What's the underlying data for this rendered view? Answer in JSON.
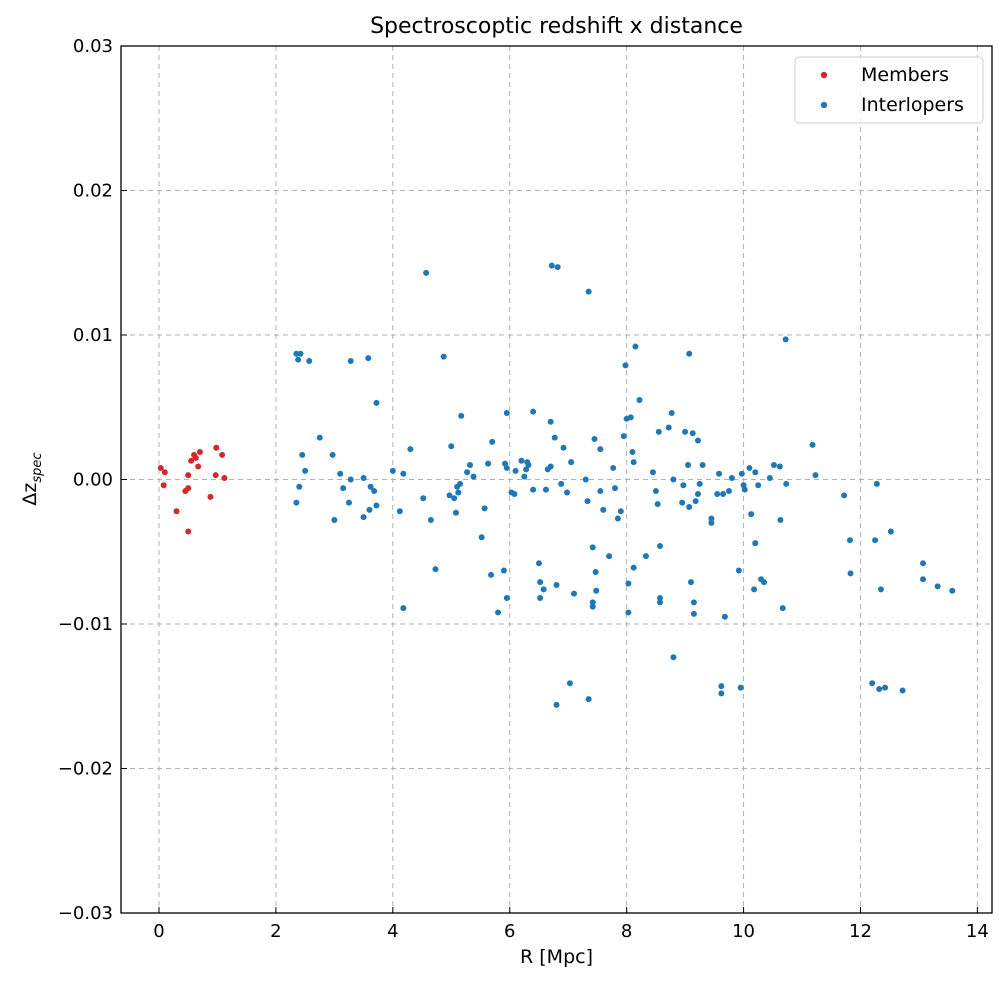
{
  "chart_data": {
    "type": "scatter",
    "title": "Spectroscoptic redshift x distance",
    "xlabel": "R [Mpc]",
    "ylabel_main": "Δz",
    "ylabel_sub": "spec",
    "xlim": [
      -0.65,
      14.25
    ],
    "ylim": [
      -0.03,
      0.03
    ],
    "xticks": [
      0,
      2,
      4,
      6,
      8,
      10,
      12,
      14
    ],
    "yticks": [
      -0.03,
      -0.02,
      -0.01,
      0.0,
      0.01,
      0.02,
      0.03
    ],
    "ytick_labels": [
      "−0.03",
      "−0.02",
      "−0.01",
      "0.00",
      "0.01",
      "0.02",
      "0.03"
    ],
    "grid": true,
    "legend_position": "top-right",
    "series": [
      {
        "name": "Members",
        "color": "#d62728",
        "points": [
          [
            0.03,
            0.0008
          ],
          [
            0.08,
            -0.0004
          ],
          [
            0.1,
            0.0005
          ],
          [
            0.3,
            -0.0022
          ],
          [
            0.45,
            -0.0008
          ],
          [
            0.5,
            -0.0006
          ],
          [
            0.5,
            0.0003
          ],
          [
            0.55,
            0.0013
          ],
          [
            0.6,
            0.0017
          ],
          [
            0.63,
            0.0015
          ],
          [
            0.67,
            0.0009
          ],
          [
            0.7,
            0.0019
          ],
          [
            0.88,
            -0.0012
          ],
          [
            0.97,
            0.0003
          ],
          [
            0.98,
            0.0022
          ],
          [
            1.08,
            0.0017
          ],
          [
            1.12,
            0.0001
          ],
          [
            0.5,
            -0.0036
          ]
        ]
      },
      {
        "name": "Interlopers",
        "color": "#1f77b4",
        "points": [
          [
            2.35,
            0.0087
          ],
          [
            2.38,
            0.0083
          ],
          [
            2.42,
            0.0087
          ],
          [
            2.57,
            0.0082
          ],
          [
            2.35,
            -0.0016
          ],
          [
            2.4,
            -0.0005
          ],
          [
            2.45,
            0.0017
          ],
          [
            2.5,
            0.0006
          ],
          [
            2.75,
            0.0029
          ],
          [
            2.97,
            0.0017
          ],
          [
            3.0,
            -0.0028
          ],
          [
            3.1,
            0.0004
          ],
          [
            3.15,
            -0.0006
          ],
          [
            3.25,
            -0.0016
          ],
          [
            3.28,
            0.0
          ],
          [
            3.28,
            0.0082
          ],
          [
            3.5,
            0.0001
          ],
          [
            3.5,
            -0.0026
          ],
          [
            3.58,
            0.0084
          ],
          [
            3.6,
            -0.0021
          ],
          [
            3.62,
            -0.0005
          ],
          [
            3.68,
            -0.0008
          ],
          [
            3.72,
            -0.0018
          ],
          [
            3.72,
            0.0053
          ],
          [
            4.0,
            0.0006
          ],
          [
            4.12,
            -0.0022
          ],
          [
            4.18,
            0.0004
          ],
          [
            4.18,
            -0.0089
          ],
          [
            4.3,
            0.0021
          ],
          [
            4.52,
            -0.0013
          ],
          [
            4.57,
            0.0143
          ],
          [
            4.65,
            -0.0028
          ],
          [
            4.73,
            -0.0062
          ],
          [
            4.87,
            0.0085
          ],
          [
            4.97,
            -0.0011
          ],
          [
            5.0,
            0.0023
          ],
          [
            5.05,
            -0.0013
          ],
          [
            5.08,
            -0.0023
          ],
          [
            5.1,
            -0.0005
          ],
          [
            5.12,
            -0.0009
          ],
          [
            5.15,
            -0.0003
          ],
          [
            5.17,
            0.0044
          ],
          [
            5.27,
            0.0005
          ],
          [
            5.32,
            0.001
          ],
          [
            5.38,
            0.0002
          ],
          [
            5.52,
            -0.004
          ],
          [
            5.57,
            -0.002
          ],
          [
            5.63,
            0.0011
          ],
          [
            5.68,
            -0.0066
          ],
          [
            5.7,
            0.0026
          ],
          [
            5.8,
            -0.0092
          ],
          [
            5.9,
            -0.0063
          ],
          [
            5.92,
            0.0011
          ],
          [
            5.95,
            0.0046
          ],
          [
            5.95,
            0.0008
          ],
          [
            5.95,
            -0.0082
          ],
          [
            6.03,
            -0.0009
          ],
          [
            6.08,
            -0.001
          ],
          [
            6.1,
            0.0006
          ],
          [
            6.2,
            0.0013
          ],
          [
            6.25,
            0.0002
          ],
          [
            6.28,
            0.0007
          ],
          [
            6.3,
            0.0012
          ],
          [
            6.32,
            0.001
          ],
          [
            6.4,
            0.0047
          ],
          [
            6.4,
            -0.0007
          ],
          [
            6.5,
            -0.0058
          ],
          [
            6.52,
            -0.0071
          ],
          [
            6.52,
            -0.0082
          ],
          [
            6.58,
            -0.0076
          ],
          [
            6.62,
            -0.0007
          ],
          [
            6.65,
            0.0007
          ],
          [
            6.7,
            0.0009
          ],
          [
            6.7,
            0.004
          ],
          [
            6.72,
            0.0148
          ],
          [
            6.77,
            0.0029
          ],
          [
            6.8,
            -0.0073
          ],
          [
            6.8,
            -0.0156
          ],
          [
            6.82,
            0.0147
          ],
          [
            6.88,
            -0.0003
          ],
          [
            6.92,
            0.0022
          ],
          [
            6.98,
            -0.0009
          ],
          [
            7.03,
            -0.0141
          ],
          [
            7.05,
            0.0012
          ],
          [
            7.1,
            -0.0079
          ],
          [
            7.3,
            0.0
          ],
          [
            7.33,
            -0.0015
          ],
          [
            7.35,
            -0.0152
          ],
          [
            7.35,
            0.013
          ],
          [
            7.42,
            -0.0047
          ],
          [
            7.42,
            -0.0085
          ],
          [
            7.42,
            -0.0088
          ],
          [
            7.45,
            0.0028
          ],
          [
            7.47,
            -0.0064
          ],
          [
            7.48,
            -0.0077
          ],
          [
            7.55,
            0.0021
          ],
          [
            7.55,
            -0.0008
          ],
          [
            7.6,
            -0.0021
          ],
          [
            7.7,
            -0.0053
          ],
          [
            7.77,
            0.0008
          ],
          [
            7.8,
            -0.0006
          ],
          [
            7.85,
            -0.0027
          ],
          [
            7.9,
            -0.0022
          ],
          [
            7.95,
            0.003
          ],
          [
            7.98,
            0.0079
          ],
          [
            8.0,
            0.0042
          ],
          [
            8.03,
            -0.0092
          ],
          [
            8.03,
            -0.0072
          ],
          [
            8.07,
            0.0043
          ],
          [
            8.1,
            0.0019
          ],
          [
            8.12,
            0.0012
          ],
          [
            8.12,
            -0.0061
          ],
          [
            8.15,
            0.0092
          ],
          [
            8.22,
            0.0055
          ],
          [
            8.33,
            -0.0053
          ],
          [
            8.45,
            0.0005
          ],
          [
            8.5,
            -0.0008
          ],
          [
            8.53,
            -0.0017
          ],
          [
            8.55,
            0.0033
          ],
          [
            8.57,
            -0.0046
          ],
          [
            8.57,
            -0.0082
          ],
          [
            8.57,
            -0.0085
          ],
          [
            8.72,
            0.0036
          ],
          [
            8.77,
            0.0046
          ],
          [
            8.8,
            -0.0123
          ],
          [
            8.8,
            0.0
          ],
          [
            8.95,
            -0.0016
          ],
          [
            8.97,
            -0.0004
          ],
          [
            9.0,
            0.0033
          ],
          [
            9.05,
            0.001
          ],
          [
            9.07,
            -0.0019
          ],
          [
            9.07,
            0.0087
          ],
          [
            9.1,
            -0.0071
          ],
          [
            9.13,
            0.0032
          ],
          [
            9.15,
            -0.0085
          ],
          [
            9.15,
            -0.0093
          ],
          [
            9.18,
            -0.0015
          ],
          [
            9.22,
            0.0027
          ],
          [
            9.22,
            -0.001
          ],
          [
            9.25,
            -0.0003
          ],
          [
            9.3,
            0.001
          ],
          [
            9.45,
            -0.0027
          ],
          [
            9.45,
            -0.003
          ],
          [
            9.55,
            -0.001
          ],
          [
            9.58,
            0.0004
          ],
          [
            9.62,
            -0.0143
          ],
          [
            9.62,
            -0.0148
          ],
          [
            9.65,
            -0.001
          ],
          [
            9.68,
            -0.0095
          ],
          [
            9.75,
            -0.0008
          ],
          [
            9.8,
            0.0001
          ],
          [
            9.92,
            -0.0063
          ],
          [
            9.95,
            -0.0144
          ],
          [
            9.97,
            0.0004
          ],
          [
            10.0,
            -0.0004
          ],
          [
            10.02,
            -0.0007
          ],
          [
            10.1,
            0.0008
          ],
          [
            10.13,
            -0.0024
          ],
          [
            10.18,
            -0.0076
          ],
          [
            10.2,
            0.0005
          ],
          [
            10.2,
            -0.0044
          ],
          [
            10.25,
            -0.0004
          ],
          [
            10.3,
            -0.0069
          ],
          [
            10.35,
            -0.0071
          ],
          [
            10.45,
            0.0001
          ],
          [
            10.52,
            0.001
          ],
          [
            10.62,
            0.0009
          ],
          [
            10.63,
            -0.0028
          ],
          [
            10.67,
            -0.0089
          ],
          [
            10.72,
            0.0097
          ],
          [
            10.73,
            -0.0003
          ],
          [
            11.18,
            0.0024
          ],
          [
            11.23,
            0.0003
          ],
          [
            11.72,
            -0.0011
          ],
          [
            11.82,
            -0.0042
          ],
          [
            11.83,
            -0.0065
          ],
          [
            12.2,
            -0.0141
          ],
          [
            12.25,
            -0.0042
          ],
          [
            12.28,
            -0.0003
          ],
          [
            12.32,
            -0.0145
          ],
          [
            12.35,
            -0.0076
          ],
          [
            12.42,
            -0.0144
          ],
          [
            12.52,
            -0.0036
          ],
          [
            12.72,
            -0.0146
          ],
          [
            13.07,
            -0.0058
          ],
          [
            13.07,
            -0.0069
          ],
          [
            13.32,
            -0.0074
          ],
          [
            13.57,
            -0.0077
          ]
        ]
      }
    ]
  }
}
